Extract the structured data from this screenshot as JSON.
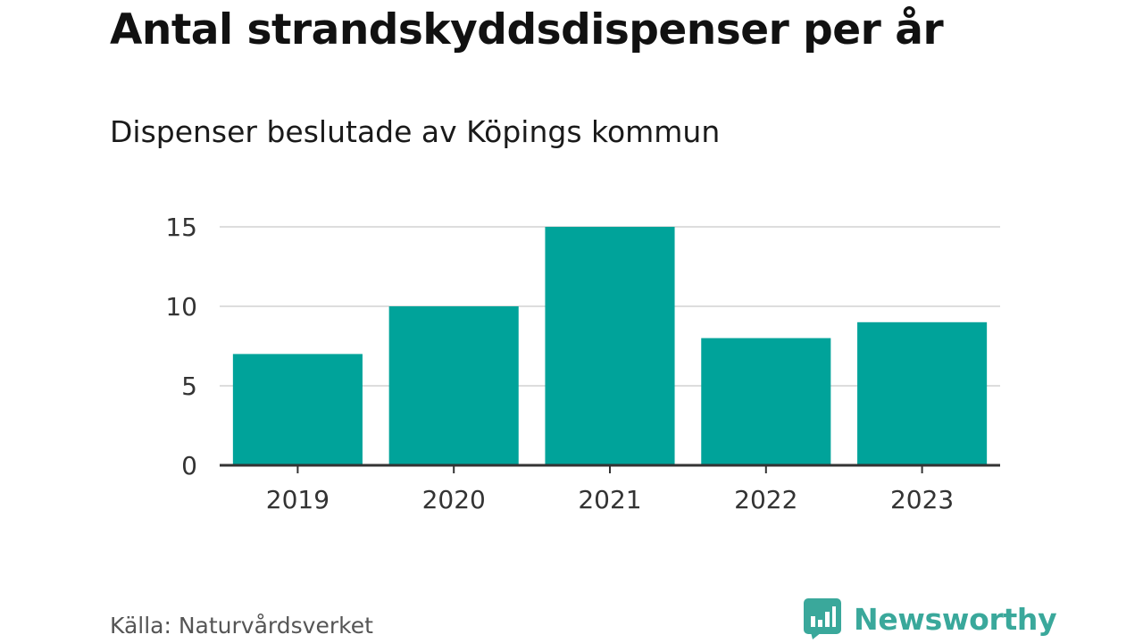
{
  "header": {
    "title": "Antal strandskyddsdispenser per år",
    "subtitle": "Dispenser beslutade av Köpings kommun"
  },
  "footer": {
    "source": "Källa: Naturvårdsverket",
    "brand": "Newsworthy"
  },
  "colors": {
    "bar": "#00a39a",
    "grid": "#dddddd",
    "axis": "#333333",
    "brand": "#3aa89b"
  },
  "chart_data": {
    "type": "bar",
    "title": "Antal strandskyddsdispenser per år",
    "subtitle": "Dispenser beslutade av Köpings kommun",
    "xlabel": "",
    "ylabel": "",
    "categories": [
      "2019",
      "2020",
      "2021",
      "2022",
      "2023"
    ],
    "values": [
      7,
      10,
      15,
      8,
      9
    ],
    "ylim": [
      0,
      15
    ],
    "yticks": [
      0,
      5,
      10,
      15
    ],
    "grid": true,
    "legend": "none"
  }
}
